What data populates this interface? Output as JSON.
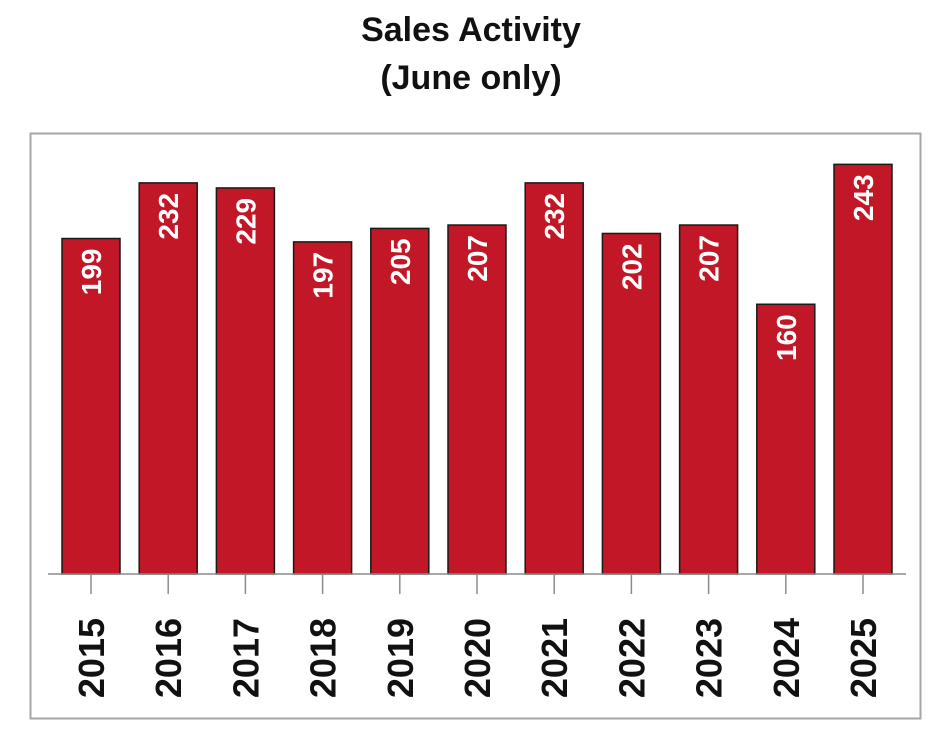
{
  "title": "Sales Activity",
  "subtitle": "(June only)",
  "colors": {
    "bar": "#c21727",
    "bar_stroke": "#1a1a1a",
    "frame": "#a6a6a6",
    "axis": "#8c8c8c",
    "label_text": "#ffffff",
    "tick_text": "#111111"
  },
  "chart_data": {
    "type": "bar",
    "title": "Sales Activity",
    "subtitle": "(June only)",
    "categories": [
      "2015",
      "2016",
      "2017",
      "2018",
      "2019",
      "2020",
      "2021",
      "2022",
      "2023",
      "2024",
      "2025"
    ],
    "values": [
      199,
      232,
      229,
      197,
      205,
      207,
      232,
      202,
      207,
      160,
      243
    ],
    "xlabel": "",
    "ylabel": "",
    "ylim": [
      0,
      261
    ],
    "grid": false,
    "legend": "none"
  }
}
